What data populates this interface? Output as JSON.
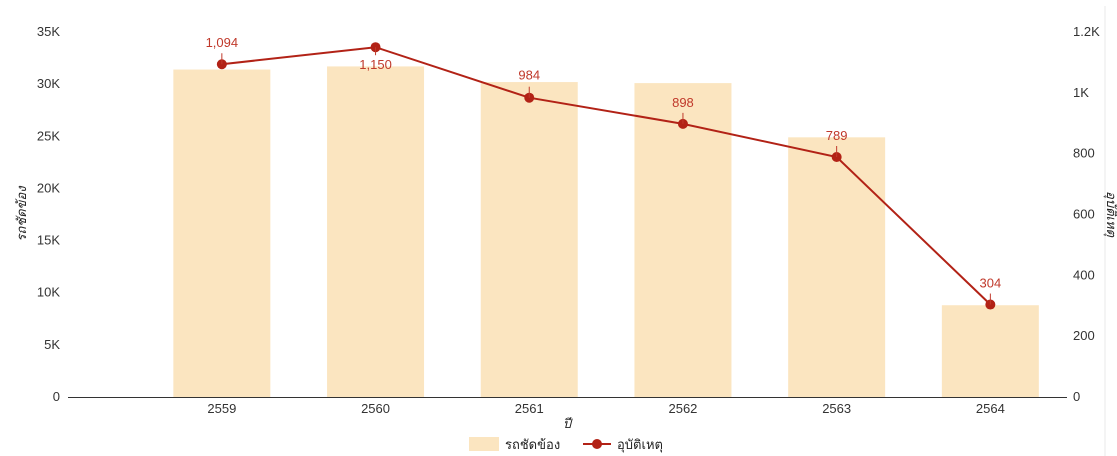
{
  "chart_data": {
    "type": "bar",
    "categories": [
      "2559",
      "2560",
      "2561",
      "2562",
      "2563",
      "2564"
    ],
    "xlabel": "ปี",
    "series": [
      {
        "name": "รถชัดข้อง",
        "type": "bar",
        "axis": "left",
        "color": "#fbe5c0",
        "values": [
          31400,
          31700,
          30200,
          30100,
          24900,
          8800
        ]
      },
      {
        "name": "อุบัติเหตุ",
        "type": "line",
        "axis": "right",
        "color": "#b22216",
        "values": [
          1094,
          1150,
          984,
          898,
          789,
          304
        ],
        "labels": [
          "1,094",
          "1,150",
          "984",
          "898",
          "789",
          "304"
        ]
      }
    ],
    "y_left": {
      "label": "รถชัดข้อง",
      "range": [
        0,
        35000
      ],
      "ticks": [
        0,
        5000,
        10000,
        15000,
        20000,
        25000,
        30000,
        35000
      ],
      "tick_labels": [
        "0",
        "5K",
        "10K",
        "15K",
        "20K",
        "25K",
        "30K",
        "35K"
      ]
    },
    "y_right": {
      "label": "อุบัติเหตุ",
      "range": [
        0,
        1200
      ],
      "ticks": [
        0,
        200,
        400,
        600,
        800,
        1000,
        1200
      ],
      "tick_labels": [
        "0",
        "200",
        "400",
        "600",
        "800",
        "1K",
        "1.2K"
      ]
    },
    "grid": false,
    "legend": "bottom-center"
  }
}
